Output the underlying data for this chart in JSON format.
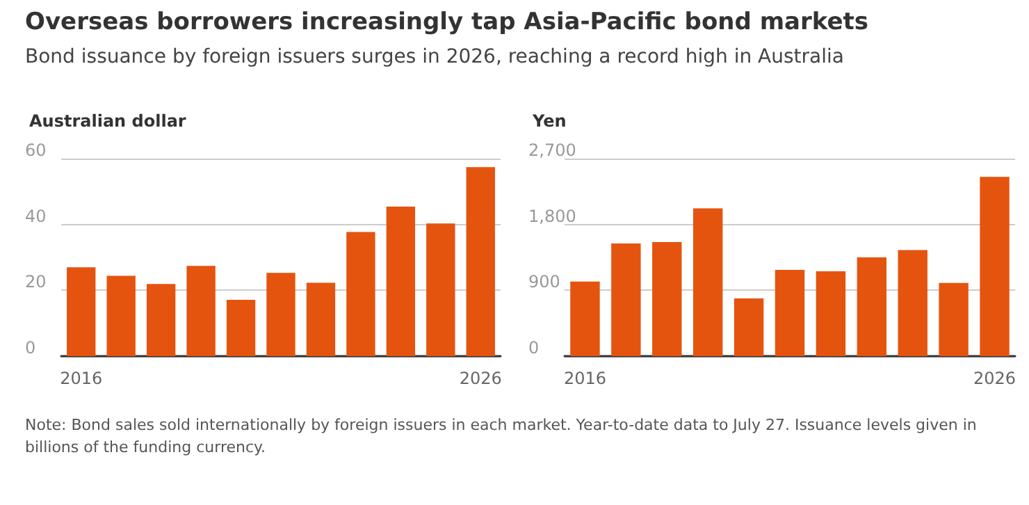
{
  "chart_data": [
    {
      "type": "bar",
      "title": "Overseas borrowers increasingly tap Asia-Pacific bond markets",
      "subtitle": "Bond issuance by foreign issuers surges in 2026, reaching a record high in Australia",
      "ylabel": "Australian dollar",
      "categories": [
        "2016",
        null,
        null,
        null,
        null,
        null,
        null,
        null,
        null,
        null,
        "2026"
      ],
      "color": "#e5540f",
      "values": [
        27,
        24.4,
        21.9,
        27.4,
        17.1,
        25.3,
        22.3,
        37.7,
        45.4,
        40.3,
        57.4
      ],
      "ylim": [
        0,
        60
      ],
      "yticks": [
        0,
        20,
        40,
        60
      ],
      "grid": "y",
      "annotations": [
        "Note: Bond sales sold internationally by foreign issuers in each market. Year-to-date data to July 27. Issuance levels given in billions of the funding currency."
      ]
    },
    {
      "type": "bar",
      "ylabel": "Yen",
      "categories": [
        "2016",
        null,
        null,
        null,
        null,
        null,
        null,
        null,
        null,
        null,
        "2026"
      ],
      "color": "#e5540f",
      "values": [
        1020,
        1540,
        1560,
        2020,
        790,
        1180,
        1160,
        1350,
        1450,
        1000,
        2450
      ],
      "ylim": [
        0,
        2700
      ],
      "yticks": [
        0,
        900,
        {
          "value": 1800,
          "label": "1,800"
        },
        {
          "value": 2700,
          "label": "2,700"
        }
      ],
      "grid": "y"
    }
  ]
}
